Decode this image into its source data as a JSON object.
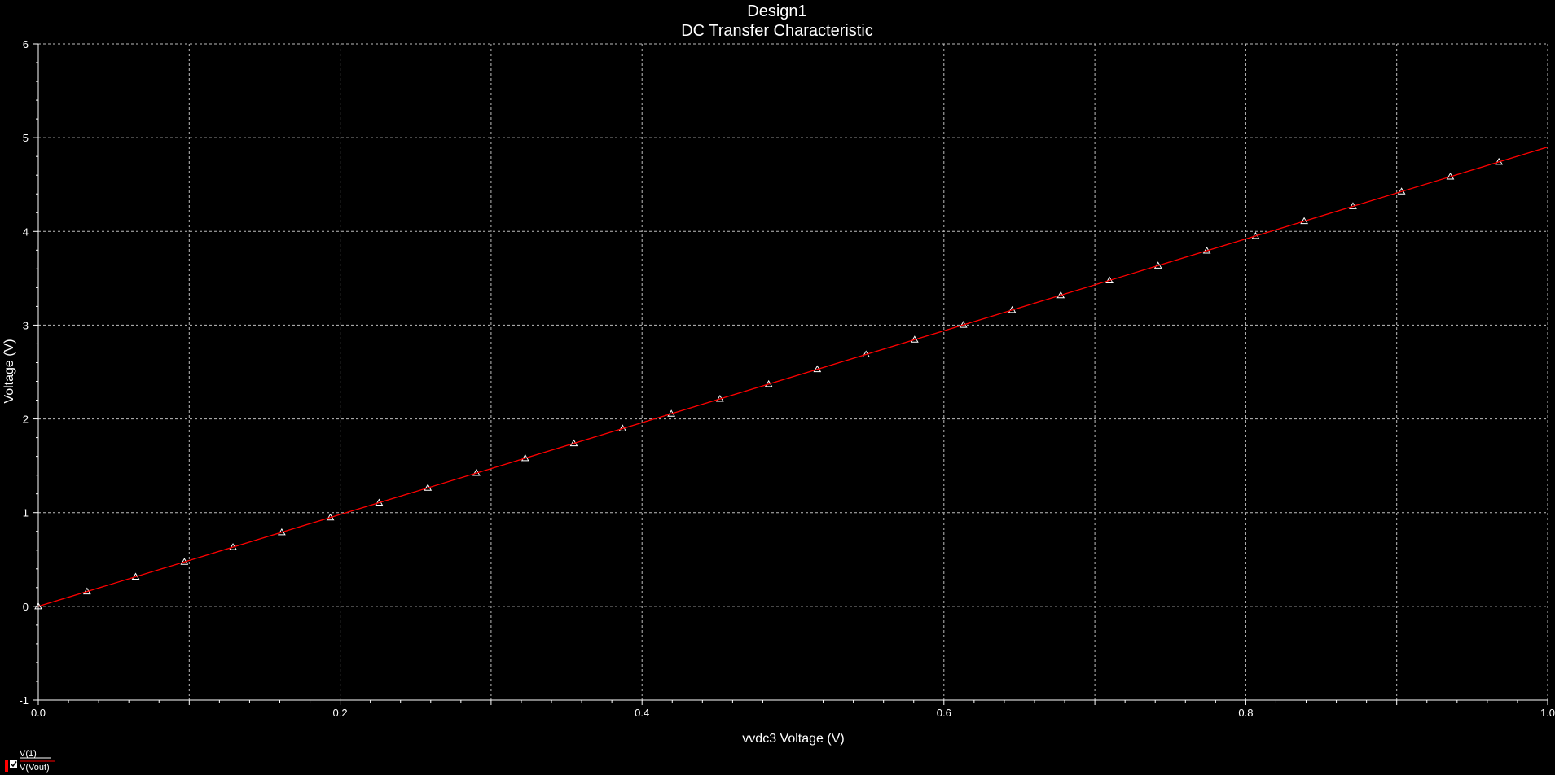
{
  "chart_data": {
    "type": "line",
    "title": "Design1",
    "subtitle": "DC Transfer Characteristic",
    "xlabel": "vvdc3 Voltage (V)",
    "ylabel": "Voltage (V)",
    "xlim": [
      0,
      1
    ],
    "ylim": [
      -1,
      6
    ],
    "x_ticks": [
      0.0,
      0.1,
      0.2,
      0.3,
      0.4,
      0.5,
      0.6,
      0.7,
      0.8,
      0.9,
      1.0
    ],
    "x_tick_labels": [
      "0.0",
      "",
      "0.2",
      "",
      "0.4",
      "",
      "0.6",
      "",
      "0.8",
      "",
      "1.0"
    ],
    "y_ticks": [
      -1,
      0,
      1,
      2,
      3,
      4,
      5,
      6
    ],
    "y_tick_labels": [
      "-1",
      "0",
      "1",
      "2",
      "3",
      "4",
      "5",
      "6"
    ],
    "grid": true,
    "background": "#000000",
    "series": [
      {
        "name": "V(1)",
        "color": "#ffffff",
        "line": false,
        "marker": "triangle",
        "x": [
          0,
          0.0323,
          0.0645,
          0.0968,
          0.129,
          0.1613,
          0.1935,
          0.2258,
          0.2581,
          0.2903,
          0.3226,
          0.3548,
          0.3871,
          0.4194,
          0.4516,
          0.4839,
          0.5161,
          0.5484,
          0.5806,
          0.6129,
          0.6452,
          0.6774,
          0.7097,
          0.7419,
          0.7742,
          0.8065,
          0.8387,
          0.871,
          0.9032,
          0.9355,
          0.9677
        ],
        "y": [
          0,
          0.158,
          0.316,
          0.474,
          0.632,
          0.79,
          0.948,
          1.106,
          1.265,
          1.423,
          1.581,
          1.739,
          1.897,
          2.055,
          2.213,
          2.371,
          2.529,
          2.687,
          2.845,
          3.003,
          3.161,
          3.319,
          3.477,
          3.635,
          3.794,
          3.952,
          4.11,
          4.268,
          4.426,
          4.584,
          4.742
        ]
      },
      {
        "name": "V(Vout)",
        "color": "#ff0000",
        "line": true,
        "marker": "none",
        "x": [
          0,
          1
        ],
        "y": [
          0,
          4.9
        ]
      }
    ],
    "legend": {
      "placement": "bottom-left",
      "entries": [
        "V(1)",
        "V(Vout)"
      ]
    }
  }
}
